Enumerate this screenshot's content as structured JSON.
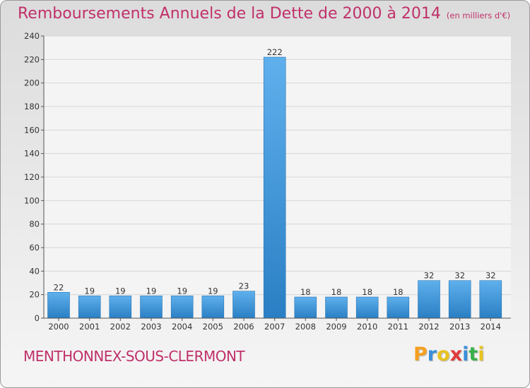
{
  "title": "Remboursements Annuels de la Dette de 2000 à 2014",
  "unit": "(en milliers d'€)",
  "commune": "MENTHONNEX-SOUS-CLERMONT",
  "logo": {
    "letters": [
      "P",
      "r",
      "o",
      "x",
      "i",
      "t",
      "i"
    ],
    "colors": [
      "#f5a020",
      "#3a8fd8",
      "#e8c320",
      "#e03a3a",
      "#3a8fd8",
      "#3ab04a",
      "#e8c320"
    ]
  },
  "colors": {
    "bar_light": "#5fb0ec",
    "bar_dark": "#2a7fc4",
    "accent": "#c0306a"
  },
  "chart_data": {
    "type": "bar",
    "title": "Remboursements Annuels de la Dette de 2000 à 2014",
    "subtitle": "(en milliers d'€)",
    "categories": [
      "2000",
      "2001",
      "2002",
      "2003",
      "2004",
      "2005",
      "2006",
      "2007",
      "2008",
      "2009",
      "2010",
      "2011",
      "2012",
      "2013",
      "2014"
    ],
    "values": [
      22,
      19,
      19,
      19,
      19,
      19,
      23,
      222,
      18,
      18,
      18,
      18,
      32,
      32,
      32
    ],
    "ylim": [
      0,
      240
    ],
    "yticks": [
      0,
      20,
      40,
      60,
      80,
      100,
      120,
      140,
      160,
      180,
      200,
      220,
      240
    ],
    "grid": true,
    "xlabel": "",
    "ylabel": ""
  }
}
